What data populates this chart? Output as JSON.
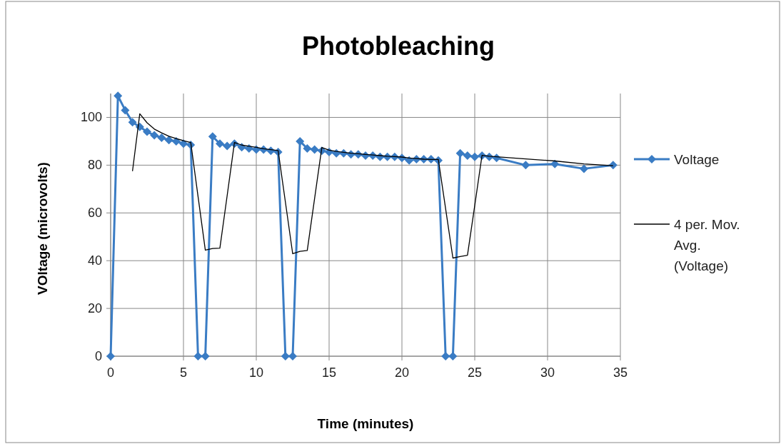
{
  "chart_data": {
    "type": "line",
    "title": "Photobleaching",
    "xlabel": "Time (minutes)",
    "ylabel": "VOltage (microvolts)",
    "xlim": [
      0,
      35
    ],
    "xticks": [
      0,
      5,
      10,
      15,
      20,
      25,
      30,
      35
    ],
    "ylim": [
      0,
      110
    ],
    "yticks": [
      0,
      20,
      40,
      60,
      80,
      100
    ],
    "grid": true,
    "legend": "right",
    "series": [
      {
        "name": "Voltage",
        "color": "#3a7cc4",
        "marker": "diamond",
        "line_style": "solid",
        "x": [
          0,
          0.5,
          1,
          1.5,
          2,
          2.5,
          3,
          3.5,
          4,
          4.5,
          5,
          5.5,
          6,
          6.5,
          7,
          7.5,
          8,
          8.5,
          9,
          9.5,
          10,
          10.5,
          11,
          11.5,
          12,
          12.5,
          13,
          13.5,
          14,
          14.5,
          15,
          15.5,
          16,
          16.5,
          17,
          17.5,
          18,
          18.5,
          19,
          19.5,
          20,
          20.5,
          21,
          21.5,
          22,
          22.5,
          23,
          23.5,
          24,
          24.5,
          25,
          25.5,
          26,
          26.5,
          28.5,
          30.5,
          32.5,
          34.5
        ],
        "values": [
          0,
          109,
          103,
          98,
          96,
          94,
          92.5,
          91.5,
          90.5,
          90,
          89,
          88.5,
          0,
          0,
          92,
          89,
          88,
          89,
          87.5,
          87,
          86.5,
          86.5,
          86,
          85.5,
          0,
          0,
          90,
          87,
          86.5,
          86,
          85.5,
          85,
          85,
          84.5,
          84.5,
          84,
          84,
          83.5,
          83.5,
          83.5,
          83,
          82,
          82.5,
          82.5,
          82.5,
          82,
          0,
          0,
          85,
          84,
          83.5,
          84,
          83.5,
          83,
          80,
          80.5,
          78.5,
          80
        ]
      },
      {
        "name": "4 per. Mov. Avg. (Voltage)",
        "type": "line",
        "color": "#000000",
        "marker": "none",
        "line_style": "solid",
        "x": [
          1.5,
          2,
          2.5,
          3,
          3.5,
          4,
          4.5,
          5,
          5.5,
          6,
          6.5,
          7,
          7.5,
          8,
          8.5,
          9,
          9.5,
          10,
          10.5,
          11,
          11.5,
          12,
          12.5,
          13,
          13.5,
          14,
          14.5,
          15,
          15.5,
          16,
          16.5,
          17,
          17.5,
          18,
          18.5,
          19,
          19.5,
          20,
          20.5,
          21,
          21.5,
          22,
          22.5,
          23,
          23.5,
          24,
          24.5,
          25,
          25.5,
          26,
          26.5,
          28.5,
          30.5,
          32.5,
          34.5
        ],
        "values": [
          77.5,
          101.5,
          97.75,
          95.1,
          93.5,
          92.1,
          91.1,
          90.25,
          89.5,
          66.9,
          44.4,
          45.1,
          45.25,
          67.25,
          89.5,
          88.4,
          87.9,
          87.5,
          86.9,
          86.5,
          86.1,
          64.5,
          42.9,
          43.9,
          44.25,
          65.9,
          87.4,
          86.25,
          85.75,
          85.4,
          85,
          84.75,
          84.5,
          84.25,
          84,
          83.75,
          83.6,
          83.4,
          83,
          82.75,
          82.5,
          82.4,
          82.4,
          61.75,
          41.1,
          41.75,
          42.25,
          63.1,
          84.1,
          83.75,
          83.5,
          82.6,
          81.75,
          80.5,
          79.75
        ]
      }
    ]
  }
}
